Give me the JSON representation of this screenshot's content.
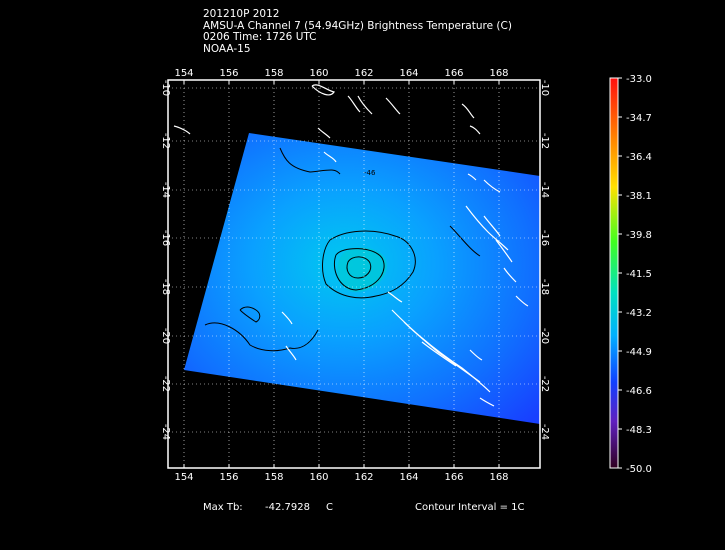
{
  "header": {
    "line1": "201210P 2012",
    "line2": "AMSU-A Channel 7 (54.94GHz) Brightness Temperature (C)",
    "line3": "0206  Time: 1726 UTC",
    "line4": "NOAA-15"
  },
  "map": {
    "lon_labels": [
      "154",
      "156",
      "158",
      "160",
      "162",
      "164",
      "166",
      "168"
    ],
    "lat_labels": [
      "-10",
      "-12",
      "-14",
      "-16",
      "-18",
      "-20",
      "-22",
      "-24"
    ]
  },
  "colorbar": {
    "labels": [
      "-33.0",
      "-34.7",
      "-36.4",
      "-38.1",
      "-39.8",
      "-41.5",
      "-43.2",
      "-44.9",
      "-46.6",
      "-48.3",
      "-50.0"
    ]
  },
  "footer": {
    "max_label": "Max Tb:",
    "max_value": "-42.7928",
    "max_unit": "C",
    "contour": "Contour Interval = 1C"
  },
  "colors": {
    "background": "#000000",
    "swath_warm": "#00b4f0",
    "swath_cold": "#0a3cff",
    "coast": "#ffffff",
    "contour": "#000000"
  }
}
